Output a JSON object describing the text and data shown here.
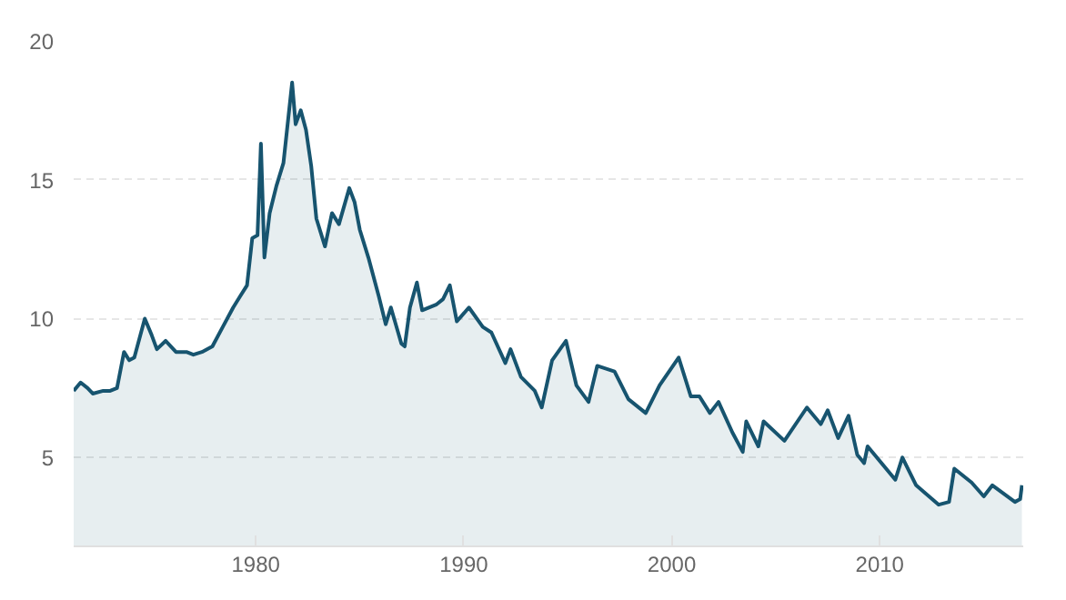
{
  "chart_data": {
    "type": "area",
    "x": [
      "1971-04",
      "1971-08",
      "1971-12",
      "1972-03",
      "1972-09",
      "1973-01",
      "1973-05",
      "1973-09",
      "1973-12",
      "1974-03",
      "1974-09",
      "1975-01",
      "1975-04",
      "1975-09",
      "1976-03",
      "1976-09",
      "1977-01",
      "1977-06",
      "1977-12",
      "1978-06",
      "1978-12",
      "1979-04",
      "1979-08",
      "1979-11",
      "1980-02",
      "1980-04",
      "1980-06",
      "1980-09",
      "1981-01",
      "1981-05",
      "1981-10",
      "1981-12",
      "1982-03",
      "1982-06",
      "1982-09",
      "1982-12",
      "1983-05",
      "1983-09",
      "1984-01",
      "1984-07",
      "1984-10",
      "1985-01",
      "1985-06",
      "1985-12",
      "1986-04",
      "1986-07",
      "1987-01",
      "1987-03",
      "1987-06",
      "1987-10",
      "1988-01",
      "1988-09",
      "1989-01",
      "1989-05",
      "1989-09",
      "1990-04",
      "1990-12",
      "1991-05",
      "1992-01",
      "1992-04",
      "1992-10",
      "1993-06",
      "1993-10",
      "1994-04",
      "1994-12",
      "1995-06",
      "1996-01",
      "1996-06",
      "1997-04",
      "1997-12",
      "1998-10",
      "1999-06",
      "2000-05",
      "2000-12",
      "2001-05",
      "2001-11",
      "2002-04",
      "2002-12",
      "2003-06",
      "2003-08",
      "2004-03",
      "2004-06",
      "2005-06",
      "2006-07",
      "2007-03",
      "2007-07",
      "2008-01",
      "2008-07",
      "2008-12",
      "2009-04",
      "2009-06",
      "2010-10",
      "2011-02",
      "2011-10",
      "2012-11",
      "2013-05",
      "2013-08",
      "2014-06",
      "2015-01",
      "2015-06",
      "2016-07",
      "2016-10",
      "2016-11"
    ],
    "series": [
      {
        "color": "#17546f",
        "values": [
          7.4,
          7.7,
          7.5,
          7.3,
          7.4,
          7.4,
          7.5,
          8.8,
          8.5,
          8.6,
          10.0,
          9.4,
          8.9,
          9.2,
          8.8,
          8.8,
          8.7,
          8.8,
          9.0,
          9.7,
          10.4,
          10.8,
          11.2,
          12.9,
          13.0,
          16.3,
          12.2,
          13.8,
          14.8,
          15.6,
          18.5,
          17.0,
          17.5,
          16.8,
          15.5,
          13.6,
          12.6,
          13.8,
          13.4,
          14.7,
          14.2,
          13.2,
          12.2,
          10.8,
          9.8,
          10.4,
          9.1,
          9.0,
          10.4,
          11.3,
          10.3,
          10.5,
          10.7,
          11.2,
          9.9,
          10.4,
          9.7,
          9.5,
          8.4,
          8.9,
          7.9,
          7.4,
          6.8,
          8.5,
          9.2,
          7.6,
          7.0,
          8.3,
          8.1,
          7.1,
          6.6,
          7.6,
          8.6,
          7.2,
          7.2,
          6.6,
          7.0,
          5.9,
          5.2,
          6.3,
          5.4,
          6.3,
          5.6,
          6.8,
          6.2,
          6.7,
          5.7,
          6.5,
          5.1,
          4.8,
          5.4,
          4.2,
          5.0,
          4.0,
          3.3,
          3.4,
          4.6,
          4.1,
          3.6,
          4.0,
          3.4,
          3.5,
          4.0
        ]
      }
    ],
    "xlim": [
      "1971-04",
      "2016-11-24"
    ],
    "xticks": [
      {
        "value": "1980",
        "label": "1980"
      },
      {
        "value": "1990",
        "label": "1990"
      },
      {
        "value": "2000",
        "label": "2000"
      },
      {
        "value": "2010",
        "label": "2010"
      }
    ],
    "ylim": [
      1.8,
      20
    ],
    "yticks": [
      5,
      10,
      15,
      20
    ],
    "grid": "y"
  }
}
